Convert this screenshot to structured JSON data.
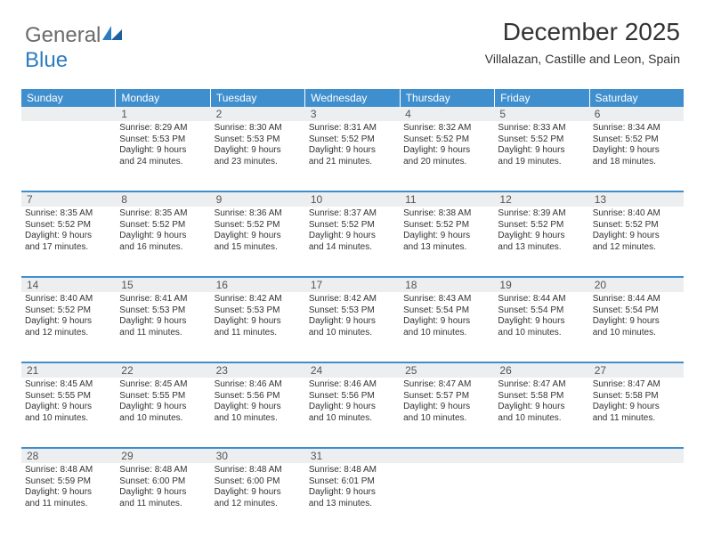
{
  "logo": {
    "text1": "General",
    "text2": "Blue"
  },
  "title": "December 2025",
  "subtitle": "Villalazan, Castille and Leon, Spain",
  "colors": {
    "header_bg": "#3f8fcf",
    "header_text": "#ffffff",
    "daynum_bg": "#eceef0",
    "text": "#333333",
    "logo_gray": "#6b6b6b",
    "logo_blue": "#2e7cc0"
  },
  "day_headers": [
    "Sunday",
    "Monday",
    "Tuesday",
    "Wednesday",
    "Thursday",
    "Friday",
    "Saturday"
  ],
  "weeks": [
    {
      "nums": [
        "",
        "1",
        "2",
        "3",
        "4",
        "5",
        "6"
      ],
      "cells": [
        {
          "sunrise": "",
          "sunset": "",
          "daylight1": "",
          "daylight2": ""
        },
        {
          "sunrise": "Sunrise: 8:29 AM",
          "sunset": "Sunset: 5:53 PM",
          "daylight1": "Daylight: 9 hours",
          "daylight2": "and 24 minutes."
        },
        {
          "sunrise": "Sunrise: 8:30 AM",
          "sunset": "Sunset: 5:53 PM",
          "daylight1": "Daylight: 9 hours",
          "daylight2": "and 23 minutes."
        },
        {
          "sunrise": "Sunrise: 8:31 AM",
          "sunset": "Sunset: 5:52 PM",
          "daylight1": "Daylight: 9 hours",
          "daylight2": "and 21 minutes."
        },
        {
          "sunrise": "Sunrise: 8:32 AM",
          "sunset": "Sunset: 5:52 PM",
          "daylight1": "Daylight: 9 hours",
          "daylight2": "and 20 minutes."
        },
        {
          "sunrise": "Sunrise: 8:33 AM",
          "sunset": "Sunset: 5:52 PM",
          "daylight1": "Daylight: 9 hours",
          "daylight2": "and 19 minutes."
        },
        {
          "sunrise": "Sunrise: 8:34 AM",
          "sunset": "Sunset: 5:52 PM",
          "daylight1": "Daylight: 9 hours",
          "daylight2": "and 18 minutes."
        }
      ]
    },
    {
      "nums": [
        "7",
        "8",
        "9",
        "10",
        "11",
        "12",
        "13"
      ],
      "cells": [
        {
          "sunrise": "Sunrise: 8:35 AM",
          "sunset": "Sunset: 5:52 PM",
          "daylight1": "Daylight: 9 hours",
          "daylight2": "and 17 minutes."
        },
        {
          "sunrise": "Sunrise: 8:35 AM",
          "sunset": "Sunset: 5:52 PM",
          "daylight1": "Daylight: 9 hours",
          "daylight2": "and 16 minutes."
        },
        {
          "sunrise": "Sunrise: 8:36 AM",
          "sunset": "Sunset: 5:52 PM",
          "daylight1": "Daylight: 9 hours",
          "daylight2": "and 15 minutes."
        },
        {
          "sunrise": "Sunrise: 8:37 AM",
          "sunset": "Sunset: 5:52 PM",
          "daylight1": "Daylight: 9 hours",
          "daylight2": "and 14 minutes."
        },
        {
          "sunrise": "Sunrise: 8:38 AM",
          "sunset": "Sunset: 5:52 PM",
          "daylight1": "Daylight: 9 hours",
          "daylight2": "and 13 minutes."
        },
        {
          "sunrise": "Sunrise: 8:39 AM",
          "sunset": "Sunset: 5:52 PM",
          "daylight1": "Daylight: 9 hours",
          "daylight2": "and 13 minutes."
        },
        {
          "sunrise": "Sunrise: 8:40 AM",
          "sunset": "Sunset: 5:52 PM",
          "daylight1": "Daylight: 9 hours",
          "daylight2": "and 12 minutes."
        }
      ]
    },
    {
      "nums": [
        "14",
        "15",
        "16",
        "17",
        "18",
        "19",
        "20"
      ],
      "cells": [
        {
          "sunrise": "Sunrise: 8:40 AM",
          "sunset": "Sunset: 5:52 PM",
          "daylight1": "Daylight: 9 hours",
          "daylight2": "and 12 minutes."
        },
        {
          "sunrise": "Sunrise: 8:41 AM",
          "sunset": "Sunset: 5:53 PM",
          "daylight1": "Daylight: 9 hours",
          "daylight2": "and 11 minutes."
        },
        {
          "sunrise": "Sunrise: 8:42 AM",
          "sunset": "Sunset: 5:53 PM",
          "daylight1": "Daylight: 9 hours",
          "daylight2": "and 11 minutes."
        },
        {
          "sunrise": "Sunrise: 8:42 AM",
          "sunset": "Sunset: 5:53 PM",
          "daylight1": "Daylight: 9 hours",
          "daylight2": "and 10 minutes."
        },
        {
          "sunrise": "Sunrise: 8:43 AM",
          "sunset": "Sunset: 5:54 PM",
          "daylight1": "Daylight: 9 hours",
          "daylight2": "and 10 minutes."
        },
        {
          "sunrise": "Sunrise: 8:44 AM",
          "sunset": "Sunset: 5:54 PM",
          "daylight1": "Daylight: 9 hours",
          "daylight2": "and 10 minutes."
        },
        {
          "sunrise": "Sunrise: 8:44 AM",
          "sunset": "Sunset: 5:54 PM",
          "daylight1": "Daylight: 9 hours",
          "daylight2": "and 10 minutes."
        }
      ]
    },
    {
      "nums": [
        "21",
        "22",
        "23",
        "24",
        "25",
        "26",
        "27"
      ],
      "cells": [
        {
          "sunrise": "Sunrise: 8:45 AM",
          "sunset": "Sunset: 5:55 PM",
          "daylight1": "Daylight: 9 hours",
          "daylight2": "and 10 minutes."
        },
        {
          "sunrise": "Sunrise: 8:45 AM",
          "sunset": "Sunset: 5:55 PM",
          "daylight1": "Daylight: 9 hours",
          "daylight2": "and 10 minutes."
        },
        {
          "sunrise": "Sunrise: 8:46 AM",
          "sunset": "Sunset: 5:56 PM",
          "daylight1": "Daylight: 9 hours",
          "daylight2": "and 10 minutes."
        },
        {
          "sunrise": "Sunrise: 8:46 AM",
          "sunset": "Sunset: 5:56 PM",
          "daylight1": "Daylight: 9 hours",
          "daylight2": "and 10 minutes."
        },
        {
          "sunrise": "Sunrise: 8:47 AM",
          "sunset": "Sunset: 5:57 PM",
          "daylight1": "Daylight: 9 hours",
          "daylight2": "and 10 minutes."
        },
        {
          "sunrise": "Sunrise: 8:47 AM",
          "sunset": "Sunset: 5:58 PM",
          "daylight1": "Daylight: 9 hours",
          "daylight2": "and 10 minutes."
        },
        {
          "sunrise": "Sunrise: 8:47 AM",
          "sunset": "Sunset: 5:58 PM",
          "daylight1": "Daylight: 9 hours",
          "daylight2": "and 11 minutes."
        }
      ]
    },
    {
      "nums": [
        "28",
        "29",
        "30",
        "31",
        "",
        "",
        ""
      ],
      "cells": [
        {
          "sunrise": "Sunrise: 8:48 AM",
          "sunset": "Sunset: 5:59 PM",
          "daylight1": "Daylight: 9 hours",
          "daylight2": "and 11 minutes."
        },
        {
          "sunrise": "Sunrise: 8:48 AM",
          "sunset": "Sunset: 6:00 PM",
          "daylight1": "Daylight: 9 hours",
          "daylight2": "and 11 minutes."
        },
        {
          "sunrise": "Sunrise: 8:48 AM",
          "sunset": "Sunset: 6:00 PM",
          "daylight1": "Daylight: 9 hours",
          "daylight2": "and 12 minutes."
        },
        {
          "sunrise": "Sunrise: 8:48 AM",
          "sunset": "Sunset: 6:01 PM",
          "daylight1": "Daylight: 9 hours",
          "daylight2": "and 13 minutes."
        },
        {
          "sunrise": "",
          "sunset": "",
          "daylight1": "",
          "daylight2": ""
        },
        {
          "sunrise": "",
          "sunset": "",
          "daylight1": "",
          "daylight2": ""
        },
        {
          "sunrise": "",
          "sunset": "",
          "daylight1": "",
          "daylight2": ""
        }
      ]
    }
  ]
}
